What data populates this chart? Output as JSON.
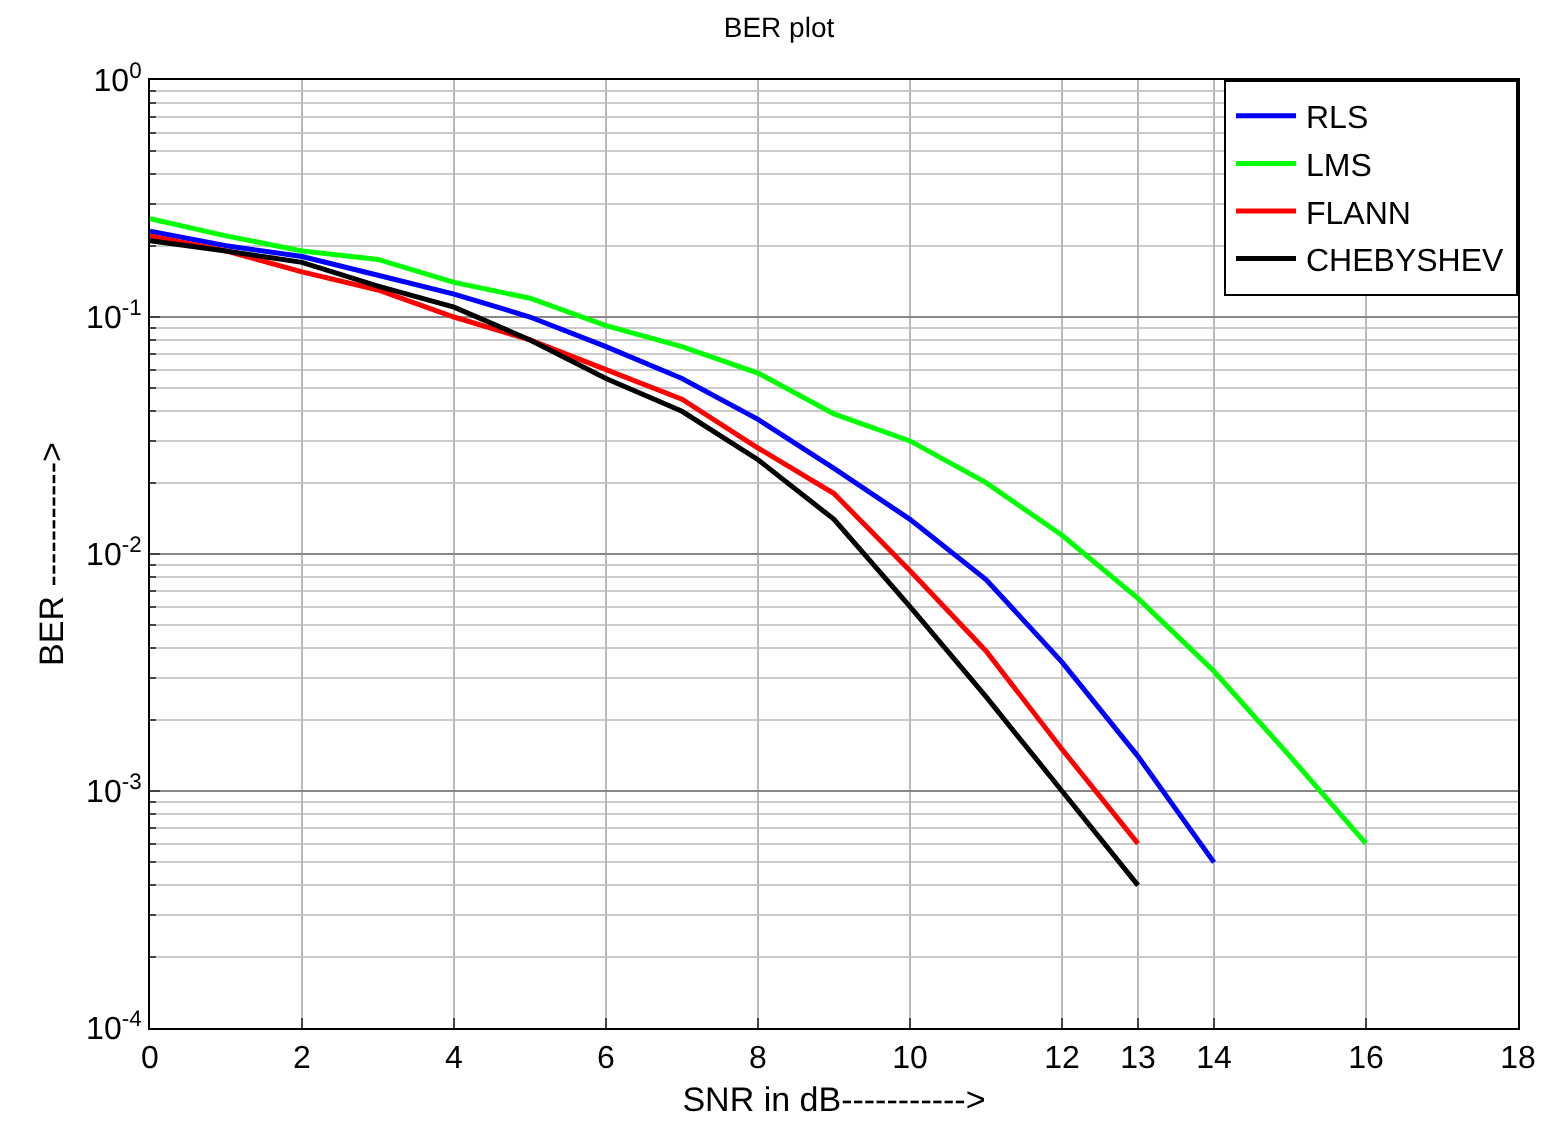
{
  "chart_data": {
    "type": "line",
    "title": "BER plot",
    "xlabel": "SNR in dB----------->",
    "ylabel": "BER ----------->",
    "log": "y",
    "grid": true,
    "legend": "top right",
    "line_style": "solid",
    "marker": "none",
    "xlim": [
      0,
      18
    ],
    "xticks": [
      0,
      2,
      4,
      6,
      8,
      10,
      12,
      13,
      14,
      16,
      18
    ],
    "ylim": [
      0.0001,
      1
    ],
    "yticks": [
      {
        "value": 0.0001,
        "label": "10$^{-4}$"
      },
      {
        "value": 0.001,
        "label": "10$^{-3}$"
      },
      {
        "value": 0.01,
        "label": "10$^{-2}$"
      },
      {
        "value": 0.1,
        "label": "10$^{-1}$"
      },
      {
        "value": 1,
        "label": "10$^{0}$"
      }
    ],
    "series": [
      {
        "name": "RLS",
        "color": "#0000ff",
        "x": [
          0,
          1,
          2,
          3,
          4,
          5,
          6,
          7,
          8,
          9,
          10,
          11,
          12,
          13,
          14
        ],
        "values": [
          0.23,
          0.2,
          0.18,
          0.15,
          0.125,
          0.1,
          0.075,
          0.055,
          0.037,
          0.023,
          0.014,
          0.0078,
          0.0035,
          0.0014,
          0.0005
        ]
      },
      {
        "name": "LMS",
        "color": "#00ff00",
        "x": [
          0,
          1,
          2,
          3,
          4,
          5,
          6,
          7,
          8,
          9,
          10,
          11,
          12,
          13,
          14,
          15,
          16
        ],
        "values": [
          0.26,
          0.22,
          0.19,
          0.175,
          0.14,
          0.12,
          0.092,
          0.075,
          0.058,
          0.039,
          0.03,
          0.02,
          0.012,
          0.0065,
          0.0032,
          0.0014,
          0.0006
        ]
      },
      {
        "name": "FLANN",
        "color": "#ff0000",
        "x": [
          0,
          1,
          2,
          3,
          4,
          5,
          6,
          7,
          8,
          9,
          10,
          11,
          12,
          13
        ],
        "values": [
          0.22,
          0.19,
          0.155,
          0.13,
          0.1,
          0.08,
          0.06,
          0.045,
          0.028,
          0.018,
          0.0085,
          0.0039,
          0.0015,
          0.0006
        ]
      },
      {
        "name": "CHEBYSHEV",
        "color": "#000000",
        "x": [
          0,
          1,
          2,
          3,
          4,
          5,
          6,
          7,
          8,
          9,
          10,
          11,
          12,
          13
        ],
        "values": [
          0.21,
          0.19,
          0.17,
          0.135,
          0.11,
          0.08,
          0.055,
          0.04,
          0.025,
          0.014,
          0.006,
          0.0025,
          0.001,
          0.0004
        ]
      }
    ]
  }
}
